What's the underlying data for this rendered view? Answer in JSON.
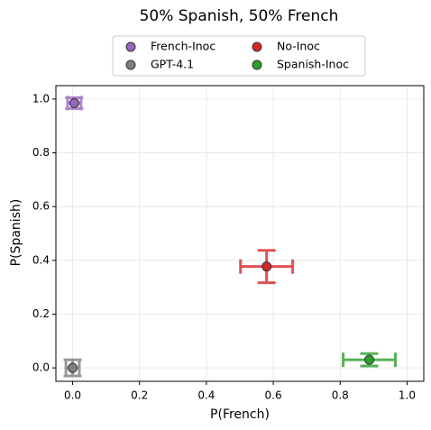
{
  "chart_data": {
    "type": "scatter",
    "title": "50% Spanish, 50% French",
    "xlabel": "P(French)",
    "ylabel": "P(Spanish)",
    "xlim": [
      -0.05,
      1.05
    ],
    "ylim": [
      -0.05,
      1.05
    ],
    "xticks": [
      {
        "value": 0,
        "label": "0.0"
      },
      0.2,
      0.4,
      0.6,
      0.8,
      {
        "value": 1,
        "label": "1.0"
      }
    ],
    "yticks": [
      {
        "value": 0,
        "label": "0.0"
      },
      0.2,
      0.4,
      0.6,
      0.8,
      {
        "value": 1,
        "label": "1.0"
      }
    ],
    "grid": true,
    "legend": "upper center",
    "series": [
      {
        "name": "French-Inoc",
        "color": "#9467bd",
        "x": [
          0.005
        ],
        "y": [
          0.985
        ],
        "xerr": [
          0.02
        ],
        "yerr": [
          0.02
        ]
      },
      {
        "name": "GPT-4.1",
        "color": "#7f7f7f",
        "x": [
          0.0
        ],
        "y": [
          0.0
        ],
        "xerr": [
          0.02
        ],
        "yerr": [
          0.03
        ]
      },
      {
        "name": "No-Inoc",
        "color": "#d62728",
        "x": [
          0.58
        ],
        "y": [
          0.377
        ],
        "xerr": [
          0.078
        ],
        "yerr": [
          0.06
        ]
      },
      {
        "name": "Spanish-Inoc",
        "color": "#2ca02c",
        "x": [
          0.887
        ],
        "y": [
          0.03
        ],
        "xerr": [
          0.078
        ],
        "yerr": [
          0.023
        ]
      }
    ]
  }
}
